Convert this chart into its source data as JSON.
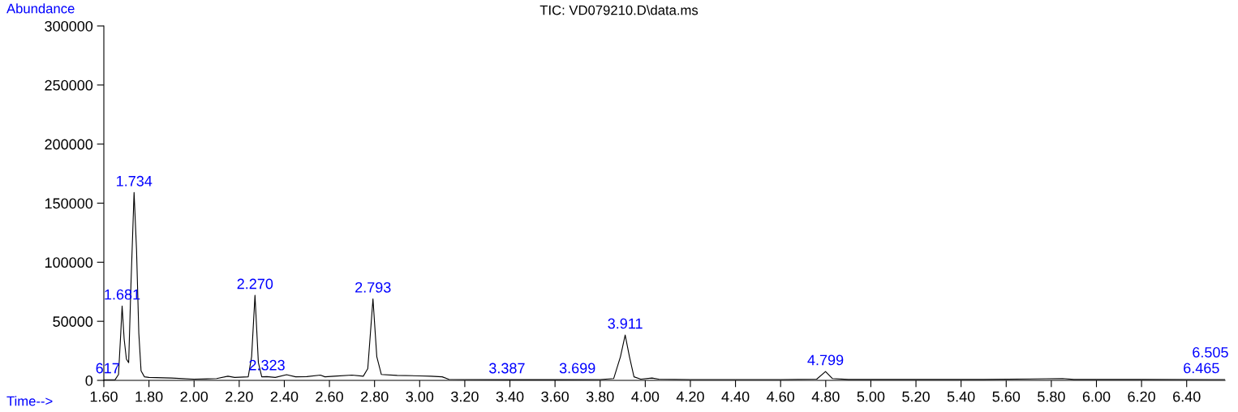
{
  "chart_data": {
    "type": "line",
    "title": "TIC: VD079210.D\\data.ms",
    "xlabel": "Time-->",
    "ylabel": "Abundance",
    "series": [
      {
        "color": "#000000",
        "x": [
          1.6,
          1.65,
          1.665,
          1.675,
          1.681,
          1.69,
          1.7,
          1.71,
          1.72,
          1.734,
          1.745,
          1.755,
          1.765,
          1.78,
          1.8,
          1.9,
          2.0,
          2.1,
          2.15,
          2.18,
          2.24,
          2.255,
          2.27,
          2.285,
          2.3,
          2.323,
          2.36,
          2.41,
          2.45,
          2.5,
          2.56,
          2.58,
          2.62,
          2.7,
          2.75,
          2.77,
          2.793,
          2.81,
          2.83,
          2.9,
          3.0,
          3.05,
          3.1,
          3.13,
          3.2,
          3.4,
          3.6,
          3.8,
          3.86,
          3.89,
          3.911,
          3.93,
          3.95,
          3.98,
          4.03,
          4.06,
          4.2,
          4.4,
          4.6,
          4.76,
          4.799,
          4.83,
          4.9,
          5.2,
          5.5,
          5.85,
          5.9,
          6.2,
          6.5,
          6.57
        ],
        "values": [
          500,
          600,
          5000,
          40000,
          63000,
          35000,
          18000,
          15000,
          80000,
          159000,
          110000,
          40000,
          8000,
          3000,
          2500,
          2000,
          1000,
          1500,
          3500,
          2500,
          3000,
          20000,
          72000,
          15000,
          3000,
          3200,
          2500,
          4800,
          3000,
          3200,
          4500,
          3000,
          3500,
          4500,
          3500,
          10000,
          69000,
          20000,
          5000,
          4200,
          3800,
          3500,
          3000,
          900,
          700,
          600,
          600,
          700,
          1500,
          20000,
          38400,
          20000,
          3000,
          1000,
          2000,
          1000,
          700,
          700,
          700,
          1000,
          7500,
          1500,
          800,
          800,
          800,
          1500,
          800,
          800,
          700,
          700
        ]
      }
    ],
    "annotations": [
      {
        "text": "617",
        "x": 1.617,
        "y": 600
      },
      {
        "text": "1.681",
        "x": 1.681,
        "y": 63000
      },
      {
        "text": "1.734",
        "x": 1.734,
        "y": 159000
      },
      {
        "text": "2.270",
        "x": 2.27,
        "y": 72000
      },
      {
        "text": "2.323",
        "x": 2.323,
        "y": 3200
      },
      {
        "text": "2.793",
        "x": 2.793,
        "y": 69000
      },
      {
        "text": "3.387",
        "x": 3.387,
        "y": 600
      },
      {
        "text": "3.699",
        "x": 3.699,
        "y": 650
      },
      {
        "text": "3.911",
        "x": 3.911,
        "y": 38400
      },
      {
        "text": "4.799",
        "x": 4.799,
        "y": 7500
      },
      {
        "text": "6.465",
        "x": 6.465,
        "y": 700
      },
      {
        "text": "6.505",
        "x": 6.505,
        "y": 700
      }
    ],
    "xlim": [
      1.6,
      6.57
    ],
    "ylim": [
      0,
      300000
    ],
    "xticks": [
      {
        "value": 1.6,
        "label": "1.60"
      },
      {
        "value": 1.8,
        "label": "1.80"
      },
      {
        "value": 2.0,
        "label": "2.00"
      },
      {
        "value": 2.2,
        "label": "2.20"
      },
      {
        "value": 2.4,
        "label": "2.40"
      },
      {
        "value": 2.6,
        "label": "2.60"
      },
      {
        "value": 2.8,
        "label": "2.80"
      },
      {
        "value": 3.0,
        "label": "3.00"
      },
      {
        "value": 3.2,
        "label": "3.20"
      },
      {
        "value": 3.4,
        "label": "3.40"
      },
      {
        "value": 3.6,
        "label": "3.60"
      },
      {
        "value": 3.8,
        "label": "3.80"
      },
      {
        "value": 4.0,
        "label": "4.00"
      },
      {
        "value": 4.2,
        "label": "4.20"
      },
      {
        "value": 4.4,
        "label": "4.40"
      },
      {
        "value": 4.6,
        "label": "4.60"
      },
      {
        "value": 4.8,
        "label": "4.80"
      },
      {
        "value": 5.0,
        "label": "5.00"
      },
      {
        "value": 5.2,
        "label": "5.20"
      },
      {
        "value": 5.4,
        "label": "5.40"
      },
      {
        "value": 5.6,
        "label": "5.60"
      },
      {
        "value": 5.8,
        "label": "5.80"
      },
      {
        "value": 6.0,
        "label": "6.00"
      },
      {
        "value": 6.2,
        "label": "6.20"
      },
      {
        "value": 6.4,
        "label": "6.40"
      }
    ],
    "yticks": [
      0,
      50000,
      100000,
      150000,
      200000,
      250000,
      300000
    ],
    "grid": false,
    "legend": false,
    "marker": "none",
    "line_style": "solid"
  }
}
